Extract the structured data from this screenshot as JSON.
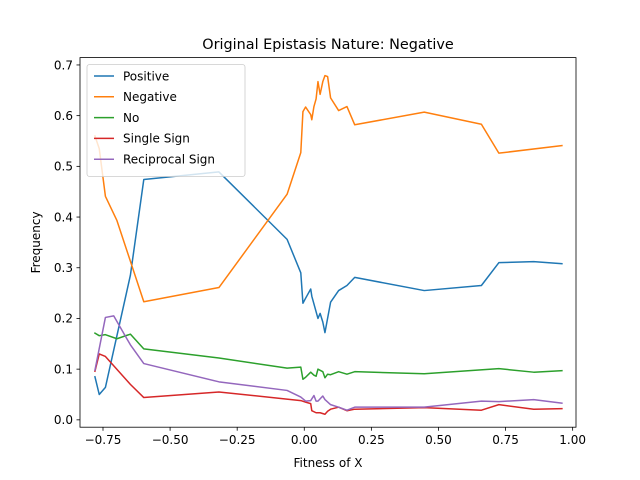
{
  "chart_data": {
    "type": "line",
    "title": "Original Epistasis Nature: Negative",
    "xlabel": "Fitness of X",
    "ylabel": "Frequency",
    "xlim": [
      -0.8357,
      1.0125
    ],
    "ylim": [
      -0.0145,
      0.7145
    ],
    "xticks": [
      -0.75,
      -0.5,
      -0.25,
      0.0,
      0.25,
      0.5,
      0.75,
      1.0
    ],
    "xtick_labels": [
      "−0.75",
      "−0.50",
      "−0.25",
      "0.00",
      "0.25",
      "0.50",
      "0.75",
      "1.00"
    ],
    "yticks": [
      0.0,
      0.1,
      0.2,
      0.3,
      0.4,
      0.5,
      0.6,
      0.7
    ],
    "ytick_labels": [
      "0.0",
      "0.1",
      "0.2",
      "0.3",
      "0.4",
      "0.5",
      "0.6",
      "0.7"
    ],
    "grid": false,
    "legend_position": "top-left",
    "series": [
      {
        "name": "Positive",
        "color": "#1f77b4",
        "points": [
          [
            -0.78,
            0.085
          ],
          [
            -0.764,
            0.05
          ],
          [
            -0.741,
            0.064
          ],
          [
            -0.648,
            0.285
          ],
          [
            -0.598,
            0.474
          ],
          [
            -0.318,
            0.489
          ],
          [
            -0.064,
            0.356
          ],
          [
            -0.013,
            0.29
          ],
          [
            -0.005,
            0.23
          ],
          [
            0.005,
            0.24
          ],
          [
            0.024,
            0.258
          ],
          [
            0.028,
            0.244
          ],
          [
            0.051,
            0.2
          ],
          [
            0.059,
            0.21
          ],
          [
            0.069,
            0.193
          ],
          [
            0.077,
            0.172
          ],
          [
            0.098,
            0.232
          ],
          [
            0.128,
            0.255
          ],
          [
            0.159,
            0.265
          ],
          [
            0.188,
            0.281
          ],
          [
            0.447,
            0.255
          ],
          [
            0.66,
            0.265
          ],
          [
            0.725,
            0.31
          ],
          [
            0.855,
            0.312
          ],
          [
            0.96,
            0.308
          ]
        ]
      },
      {
        "name": "Negative",
        "color": "#ff7f0e",
        "points": [
          [
            -0.78,
            0.56
          ],
          [
            -0.764,
            0.535
          ],
          [
            -0.741,
            0.441
          ],
          [
            -0.698,
            0.393
          ],
          [
            -0.598,
            0.233
          ],
          [
            -0.318,
            0.261
          ],
          [
            -0.064,
            0.445
          ],
          [
            -0.013,
            0.527
          ],
          [
            -0.005,
            0.608
          ],
          [
            0.005,
            0.617
          ],
          [
            0.024,
            0.602
          ],
          [
            0.028,
            0.592
          ],
          [
            0.036,
            0.618
          ],
          [
            0.044,
            0.633
          ],
          [
            0.051,
            0.667
          ],
          [
            0.059,
            0.642
          ],
          [
            0.069,
            0.667
          ],
          [
            0.077,
            0.679
          ],
          [
            0.087,
            0.677
          ],
          [
            0.098,
            0.635
          ],
          [
            0.128,
            0.61
          ],
          [
            0.159,
            0.618
          ],
          [
            0.188,
            0.582
          ],
          [
            0.447,
            0.607
          ],
          [
            0.66,
            0.583
          ],
          [
            0.725,
            0.526
          ],
          [
            0.96,
            0.541
          ]
        ]
      },
      {
        "name": "No",
        "color": "#2ca02c",
        "points": [
          [
            -0.78,
            0.171
          ],
          [
            -0.764,
            0.166
          ],
          [
            -0.741,
            0.168
          ],
          [
            -0.698,
            0.16
          ],
          [
            -0.648,
            0.169
          ],
          [
            -0.598,
            0.14
          ],
          [
            -0.318,
            0.122
          ],
          [
            -0.064,
            0.102
          ],
          [
            -0.013,
            0.104
          ],
          [
            -0.005,
            0.08
          ],
          [
            0.005,
            0.084
          ],
          [
            0.024,
            0.094
          ],
          [
            0.036,
            0.088
          ],
          [
            0.044,
            0.086
          ],
          [
            0.051,
            0.1
          ],
          [
            0.069,
            0.095
          ],
          [
            0.077,
            0.083
          ],
          [
            0.087,
            0.09
          ],
          [
            0.098,
            0.089
          ],
          [
            0.128,
            0.095
          ],
          [
            0.159,
            0.09
          ],
          [
            0.188,
            0.095
          ],
          [
            0.447,
            0.091
          ],
          [
            0.725,
            0.101
          ],
          [
            0.855,
            0.094
          ],
          [
            0.96,
            0.097
          ]
        ]
      },
      {
        "name": "Single Sign",
        "color": "#d62728",
        "points": [
          [
            -0.78,
            0.096
          ],
          [
            -0.764,
            0.13
          ],
          [
            -0.741,
            0.125
          ],
          [
            -0.648,
            0.07
          ],
          [
            -0.598,
            0.044
          ],
          [
            -0.318,
            0.055
          ],
          [
            -0.013,
            0.038
          ],
          [
            0.005,
            0.035
          ],
          [
            0.024,
            0.032
          ],
          [
            0.028,
            0.018
          ],
          [
            0.044,
            0.014
          ],
          [
            0.059,
            0.014
          ],
          [
            0.077,
            0.011
          ],
          [
            0.087,
            0.017
          ],
          [
            0.098,
            0.021
          ],
          [
            0.128,
            0.025
          ],
          [
            0.159,
            0.018
          ],
          [
            0.188,
            0.021
          ],
          [
            0.447,
            0.024
          ],
          [
            0.66,
            0.019
          ],
          [
            0.725,
            0.03
          ],
          [
            0.855,
            0.021
          ],
          [
            0.96,
            0.022
          ]
        ]
      },
      {
        "name": "Reciprocal Sign",
        "color": "#9467bd",
        "points": [
          [
            -0.78,
            0.098
          ],
          [
            -0.741,
            0.202
          ],
          [
            -0.71,
            0.205
          ],
          [
            -0.648,
            0.148
          ],
          [
            -0.598,
            0.111
          ],
          [
            -0.318,
            0.075
          ],
          [
            -0.064,
            0.058
          ],
          [
            -0.013,
            0.045
          ],
          [
            0.005,
            0.037
          ],
          [
            0.024,
            0.038
          ],
          [
            0.036,
            0.048
          ],
          [
            0.044,
            0.037
          ],
          [
            0.051,
            0.037
          ],
          [
            0.069,
            0.047
          ],
          [
            0.077,
            0.04
          ],
          [
            0.098,
            0.03
          ],
          [
            0.128,
            0.025
          ],
          [
            0.159,
            0.019
          ],
          [
            0.188,
            0.025
          ],
          [
            0.447,
            0.025
          ],
          [
            0.66,
            0.037
          ],
          [
            0.725,
            0.036
          ],
          [
            0.855,
            0.04
          ],
          [
            0.96,
            0.033
          ]
        ]
      }
    ]
  }
}
